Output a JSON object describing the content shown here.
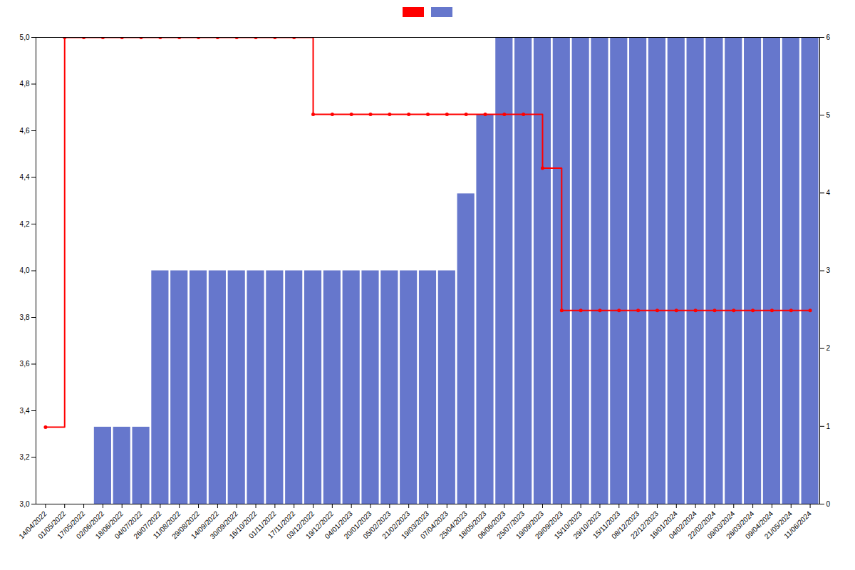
{
  "chart_data": {
    "type": "bar",
    "categories": [
      "14/04/2022",
      "01/05/2022",
      "17/05/2022",
      "02/06/2022",
      "18/06/2022",
      "04/07/2022",
      "26/07/2022",
      "11/08/2022",
      "29/08/2022",
      "14/09/2022",
      "30/09/2022",
      "16/10/2022",
      "01/11/2022",
      "17/11/2022",
      "03/12/2022",
      "19/12/2022",
      "04/01/2023",
      "20/01/2023",
      "05/02/2023",
      "21/02/2023",
      "19/03/2023",
      "07/04/2023",
      "25/04/2023",
      "18/05/2023",
      "06/06/2023",
      "25/07/2023",
      "19/09/2023",
      "29/09/2023",
      "15/10/2023",
      "29/10/2023",
      "15/11/2023",
      "08/12/2023",
      "22/12/2023",
      "16/01/2024",
      "04/02/2024",
      "22/02/2024",
      "09/03/2024",
      "26/03/2024",
      "09/04/2024",
      "21/05/2024",
      "11/06/2024"
    ],
    "series": [
      {
        "type": "bar",
        "color": "#6677cc",
        "values": [
          null,
          null,
          null,
          3.33,
          3.33,
          3.33,
          4.0,
          4.0,
          4.0,
          4.0,
          4.0,
          4.0,
          4.0,
          4.0,
          4.0,
          4.0,
          4.0,
          4.0,
          4.0,
          4.0,
          4.0,
          4.0,
          4.33,
          4.67,
          5.0,
          5.0,
          5.0,
          5.0,
          5.0,
          5.0,
          5.0,
          5.0,
          5.0,
          5.0,
          5.0,
          5.0,
          5.0,
          5.0,
          5.0,
          5.0,
          5.0
        ]
      },
      {
        "type": "line",
        "color": "#ff0000",
        "marker": "circle",
        "line_style": "step",
        "values": [
          3.33,
          5.0,
          5.0,
          5.0,
          5.0,
          5.0,
          5.0,
          5.0,
          5.0,
          5.0,
          5.0,
          5.0,
          5.0,
          5.0,
          4.67,
          4.67,
          4.67,
          4.67,
          4.67,
          4.67,
          4.67,
          4.67,
          4.67,
          4.67,
          4.67,
          4.67,
          4.44,
          3.83,
          3.83,
          3.83,
          3.83,
          3.83,
          3.83,
          3.83,
          3.83,
          3.83,
          3.83,
          3.83,
          3.83,
          3.83,
          3.83
        ]
      }
    ],
    "ylim": [
      3.0,
      5.0
    ],
    "yticks": [
      {
        "value": 3.0,
        "label": "3,0"
      },
      {
        "value": 3.2,
        "label": "3,2"
      },
      {
        "value": 3.4,
        "label": "3,4"
      },
      {
        "value": 3.6,
        "label": "3,6"
      },
      {
        "value": 3.8,
        "label": "3,8"
      },
      {
        "value": 4.0,
        "label": "4,0"
      },
      {
        "value": 4.2,
        "label": "4,2"
      },
      {
        "value": 4.4,
        "label": "4,4"
      },
      {
        "value": 4.6,
        "label": "4,6"
      },
      {
        "value": 4.8,
        "label": "4,8"
      },
      {
        "value": 5.0,
        "label": "5,0"
      }
    ],
    "y2lim": [
      0,
      6
    ],
    "y2ticks": [
      0,
      1,
      2,
      3,
      4,
      5,
      6
    ],
    "legend": "top"
  }
}
